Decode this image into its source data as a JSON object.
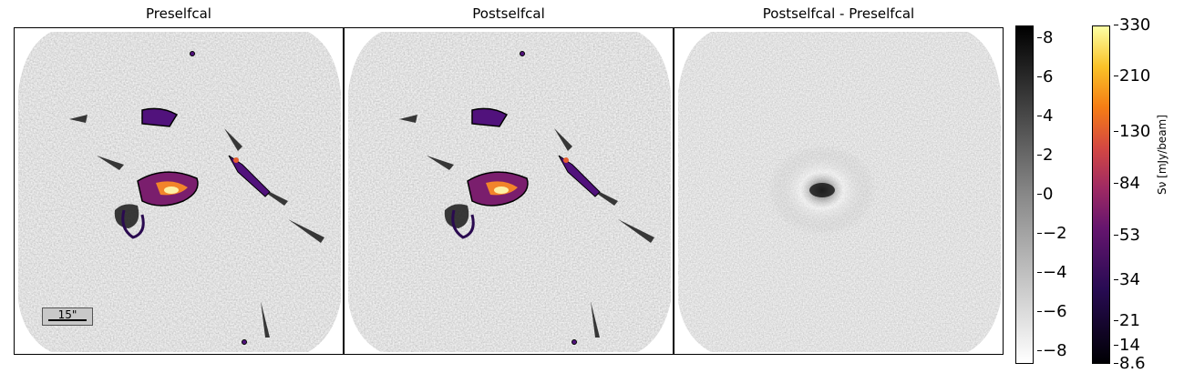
{
  "panels": [
    {
      "title": "Preselfcal"
    },
    {
      "title": "Postselfcal"
    },
    {
      "title": "Postselfcal - Preselfcal"
    }
  ],
  "scalebar": {
    "label": "15\""
  },
  "gray_colorbar": {
    "ticks": [
      "8",
      "6",
      "4",
      "2",
      "0",
      "−2",
      "−4",
      "−6",
      "−8"
    ]
  },
  "color_colorbar": {
    "ticks": [
      "330",
      "210",
      "130",
      "84",
      "53",
      "34",
      "21",
      "14",
      "8.6"
    ],
    "label": "Sν [mJy/beam]",
    "colormap": "inferno"
  }
}
